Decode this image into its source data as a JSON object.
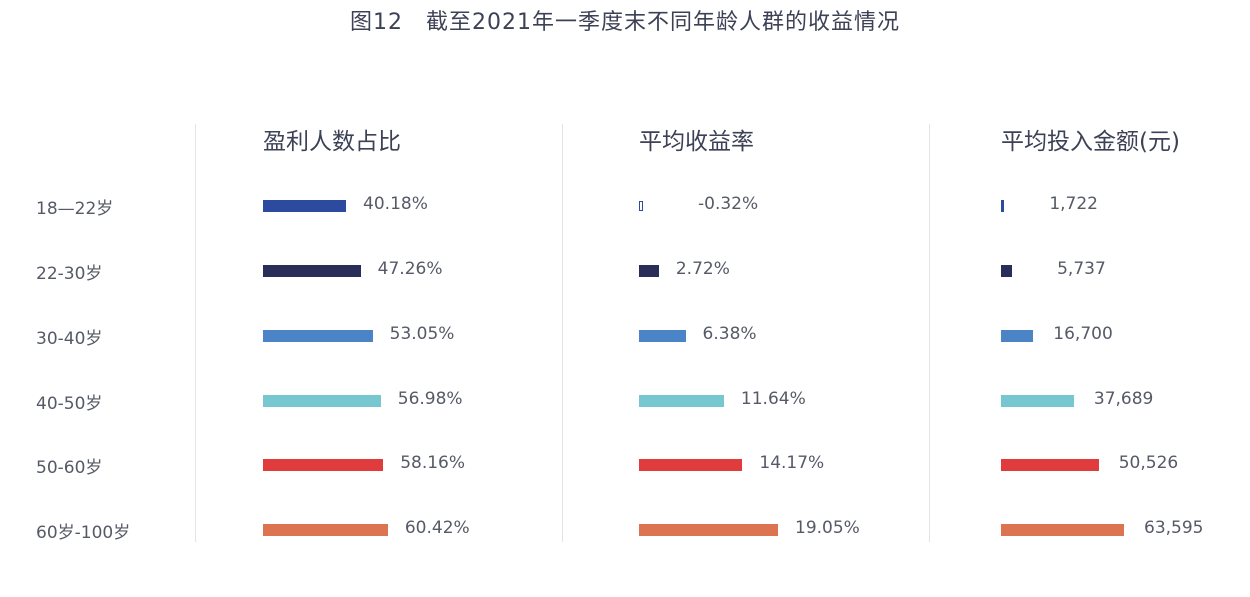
{
  "title": "图12　截至2021年一季度末不同年龄人群的收益情况",
  "chart_data": {
    "type": "bar",
    "orientation": "horizontal",
    "title": "图12　截至2021年一季度末不同年龄人群的收益情况",
    "categories": [
      "18—22岁",
      "22-30岁",
      "30-40岁",
      "40-50岁",
      "50-60岁",
      "60岁-100岁"
    ],
    "category_colors": [
      "#2c4a9e",
      "#282e58",
      "#4b84c6",
      "#76c7cf",
      "#e03c3e",
      "#dc7451"
    ],
    "panels": [
      {
        "name": "盈利人数占比",
        "values": [
          40.18,
          47.26,
          53.05,
          56.98,
          58.16,
          60.42
        ],
        "labels": [
          "40.18%",
          "47.26%",
          "53.05%",
          "56.98%",
          "58.16%",
          "60.42%"
        ],
        "unit": "%"
      },
      {
        "name": "平均收益率",
        "values": [
          -0.32,
          2.72,
          6.38,
          11.64,
          14.17,
          19.05
        ],
        "labels": [
          "-0.32%",
          "2.72%",
          "6.38%",
          "11.64%",
          "14.17%",
          "19.05%"
        ],
        "unit": "%"
      },
      {
        "name": "平均投入金额(元)",
        "values": [
          1722,
          5737,
          16700,
          37689,
          50526,
          63595
        ],
        "labels": [
          "1,722",
          "5,737",
          "16,700",
          "37,689",
          "50,526",
          "63,595"
        ],
        "unit": "元"
      }
    ]
  }
}
